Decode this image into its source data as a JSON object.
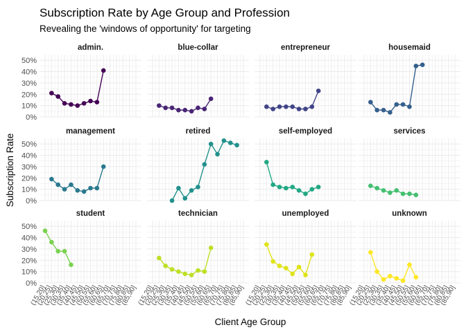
{
  "chart_data": {
    "type": "line",
    "title": "Subscription Rate by Age Group and Profession",
    "subtitle": "Revealing the 'windows of opportunity' for targeting",
    "xlabel": "Client Age Group",
    "ylabel": "Subscription Rate",
    "ylim": [
      0,
      0.55
    ],
    "y_ticks": [
      "0%",
      "10%",
      "20%",
      "30%",
      "40%",
      "50%"
    ],
    "categories": [
      "(15,20]",
      "(20,25]",
      "(25,30]",
      "(30,35]",
      "(35,40]",
      "(40,45]",
      "(45,50]",
      "(50,55]",
      "(55,60]",
      "(60,65]",
      "(65,70]",
      "(70,75]",
      "(75,80]",
      "(80,85]",
      "(85,90]"
    ],
    "grid": true,
    "facets": [
      {
        "name": "admin.",
        "color": "#440154",
        "values": [
          null,
          0.21,
          0.18,
          0.12,
          0.11,
          0.1,
          0.12,
          0.14,
          0.13,
          0.41,
          null,
          null,
          null,
          null,
          null
        ]
      },
      {
        "name": "blue-collar",
        "color": "#482475",
        "values": [
          null,
          0.1,
          0.08,
          0.08,
          0.06,
          0.06,
          0.05,
          0.08,
          0.07,
          0.16,
          null,
          null,
          null,
          null,
          null
        ]
      },
      {
        "name": "entrepreneur",
        "color": "#414487",
        "values": [
          null,
          0.09,
          0.07,
          0.09,
          0.09,
          0.09,
          0.07,
          0.07,
          0.09,
          0.23,
          null,
          null,
          null,
          null,
          null
        ]
      },
      {
        "name": "housemaid",
        "color": "#355f8d",
        "values": [
          null,
          0.13,
          0.06,
          0.06,
          0.04,
          0.11,
          0.11,
          0.09,
          0.45,
          0.46,
          null,
          null,
          null,
          null,
          null
        ]
      },
      {
        "name": "management",
        "color": "#2a788e",
        "values": [
          null,
          0.19,
          0.14,
          0.1,
          0.14,
          0.09,
          0.08,
          0.11,
          0.11,
          0.3,
          null,
          null,
          null,
          null,
          null
        ]
      },
      {
        "name": "retired",
        "color": "#21918c",
        "values": [
          null,
          null,
          null,
          0.0,
          0.11,
          0.02,
          0.09,
          0.12,
          0.32,
          0.5,
          0.41,
          0.53,
          0.51,
          0.49,
          null
        ]
      },
      {
        "name": "self-employed",
        "color": "#22a884",
        "values": [
          null,
          0.34,
          0.14,
          0.12,
          0.11,
          0.12,
          0.09,
          0.06,
          0.1,
          0.12,
          null,
          null,
          null,
          null,
          null
        ]
      },
      {
        "name": "services",
        "color": "#44bf70",
        "values": [
          null,
          0.13,
          0.11,
          0.09,
          0.07,
          0.09,
          0.06,
          0.06,
          0.05,
          null,
          null,
          null,
          null,
          null,
          null
        ]
      },
      {
        "name": "student",
        "color": "#7ad151",
        "values": [
          0.46,
          0.36,
          0.28,
          0.28,
          0.16,
          null,
          null,
          null,
          null,
          null,
          null,
          null,
          null,
          null,
          null
        ]
      },
      {
        "name": "technician",
        "color": "#bddf26",
        "values": [
          null,
          0.22,
          0.15,
          0.12,
          0.1,
          0.08,
          0.07,
          0.11,
          0.1,
          0.31,
          null,
          null,
          null,
          null,
          null
        ]
      },
      {
        "name": "unemployed",
        "color": "#dfe318",
        "values": [
          null,
          0.34,
          0.19,
          0.15,
          0.13,
          0.08,
          0.14,
          0.07,
          0.25,
          null,
          null,
          null,
          null,
          null,
          null
        ]
      },
      {
        "name": "unknown",
        "color": "#fde725",
        "values": [
          null,
          0.27,
          0.1,
          0.03,
          0.06,
          0.04,
          0.02,
          0.16,
          0.05,
          null,
          null,
          null,
          null,
          null,
          null
        ]
      }
    ]
  }
}
